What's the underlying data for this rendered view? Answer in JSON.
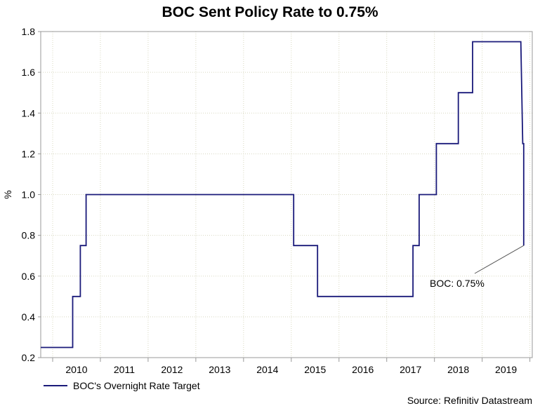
{
  "chart_data": {
    "type": "line",
    "title": "BOC Sent Policy Rate to 0.75%",
    "xlabel": "",
    "ylabel": "%",
    "ylim": [
      0.2,
      1.8
    ],
    "yticks": [
      0.2,
      0.4,
      0.6,
      0.8,
      1.0,
      1.2,
      1.4,
      1.6,
      1.8
    ],
    "ytick_labels": [
      "0.2",
      "0.4",
      "0.6",
      "0.8",
      "1.0",
      "1.2",
      "1.4",
      "1.6",
      "1.8"
    ],
    "xlim": [
      2009.75,
      2020.05
    ],
    "x_tick_labels": [
      "2010",
      "2011",
      "2012",
      "2013",
      "2014",
      "2015",
      "2016",
      "2017",
      "2018",
      "2019"
    ],
    "grid": true,
    "series": [
      {
        "name": "BOC's Overnight Rate Target",
        "color": "#1a1a7a",
        "points": [
          [
            2009.75,
            0.25
          ],
          [
            2010.42,
            0.25
          ],
          [
            2010.42,
            0.5
          ],
          [
            2010.58,
            0.5
          ],
          [
            2010.58,
            0.75
          ],
          [
            2010.7,
            0.75
          ],
          [
            2010.7,
            1.0
          ],
          [
            2015.05,
            1.0
          ],
          [
            2015.05,
            0.75
          ],
          [
            2015.55,
            0.75
          ],
          [
            2015.55,
            0.5
          ],
          [
            2017.55,
            0.5
          ],
          [
            2017.55,
            0.75
          ],
          [
            2017.68,
            0.75
          ],
          [
            2017.68,
            1.0
          ],
          [
            2018.04,
            1.0
          ],
          [
            2018.04,
            1.25
          ],
          [
            2018.5,
            1.25
          ],
          [
            2018.5,
            1.5
          ],
          [
            2018.8,
            1.5
          ],
          [
            2018.8,
            1.75
          ],
          [
            2019.81,
            1.75
          ],
          [
            2019.85,
            1.25
          ],
          [
            2019.87,
            1.25
          ],
          [
            2019.87,
            0.75
          ]
        ]
      }
    ],
    "annotation": {
      "text": "BOC: 0.75%",
      "x": 2019.87,
      "y": 0.75
    },
    "legend": {
      "position": "bottom-left",
      "label": "BOC's Overnight Rate Target"
    },
    "source": "Source: Refinitiv Datastream"
  }
}
